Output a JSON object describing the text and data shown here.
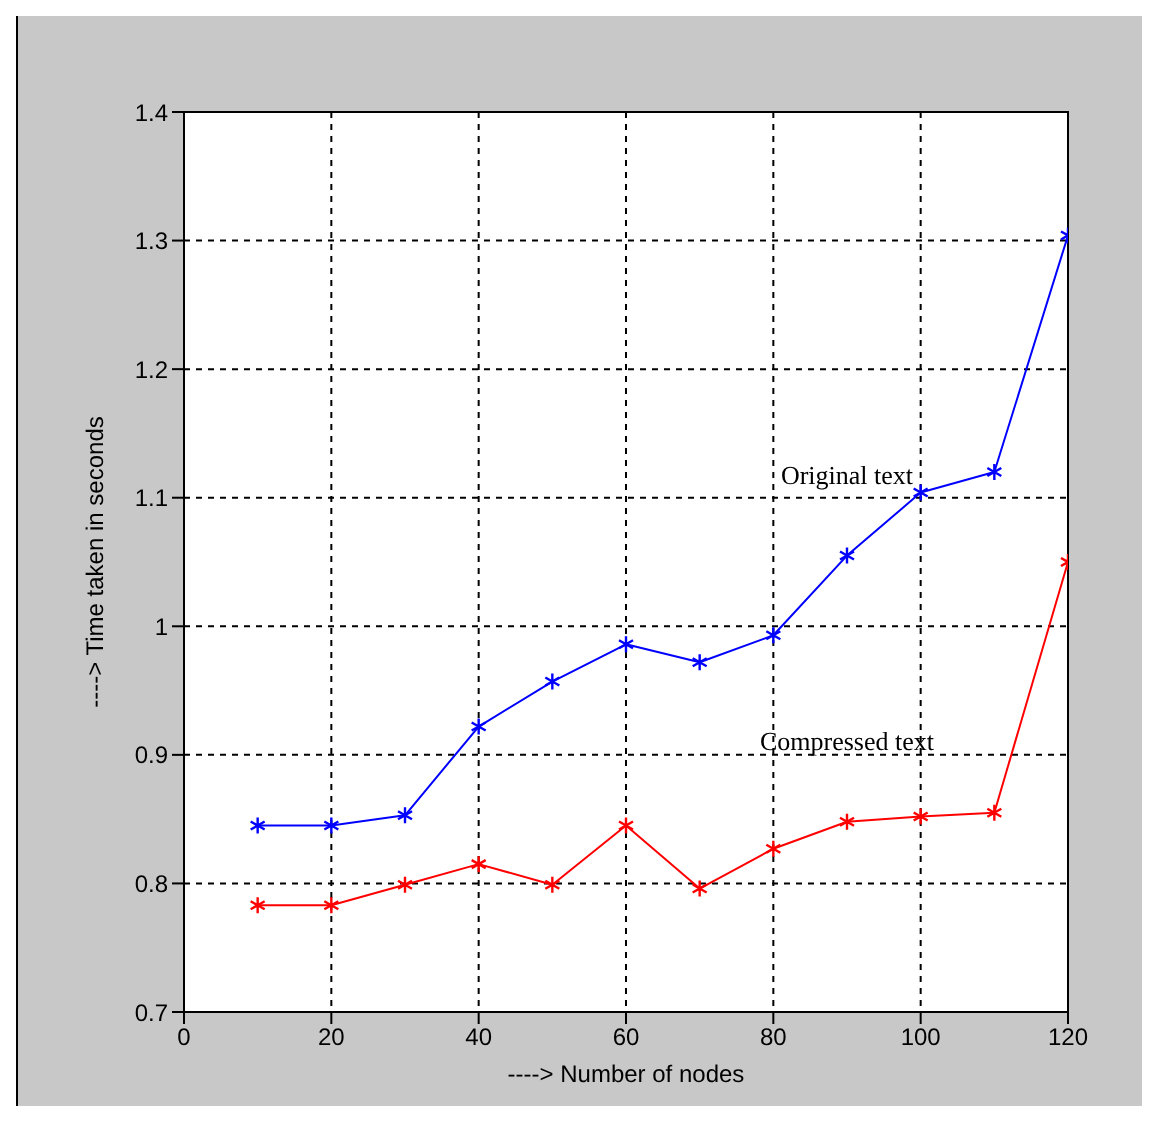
{
  "chart_data": {
    "type": "line",
    "xlabel": "----> Number of nodes",
    "ylabel": "----> Time taken in seconds",
    "x": [
      10,
      20,
      30,
      40,
      50,
      60,
      70,
      80,
      90,
      100,
      110,
      120
    ],
    "series": [
      {
        "name": "Original text",
        "color": "#0000ff",
        "values": [
          0.845,
          0.845,
          0.853,
          0.922,
          0.957,
          0.986,
          0.972,
          0.993,
          1.055,
          1.104,
          1.12,
          1.304
        ]
      },
      {
        "name": "Compressed text",
        "color": "#ff0000",
        "values": [
          0.783,
          0.783,
          0.799,
          0.815,
          0.799,
          0.845,
          0.796,
          0.827,
          0.848,
          0.852,
          0.855,
          1.05
        ]
      }
    ],
    "xlim": [
      0,
      120
    ],
    "xticks": [
      0,
      20,
      40,
      60,
      80,
      100,
      120
    ],
    "ylim": [
      0.7,
      1.4
    ],
    "yticks": [
      0.7,
      0.8,
      0.9,
      1,
      1.1,
      1.2,
      1.3,
      1.4
    ],
    "grid": true,
    "marker": "cross",
    "line_style": "solid",
    "legend": false
  }
}
